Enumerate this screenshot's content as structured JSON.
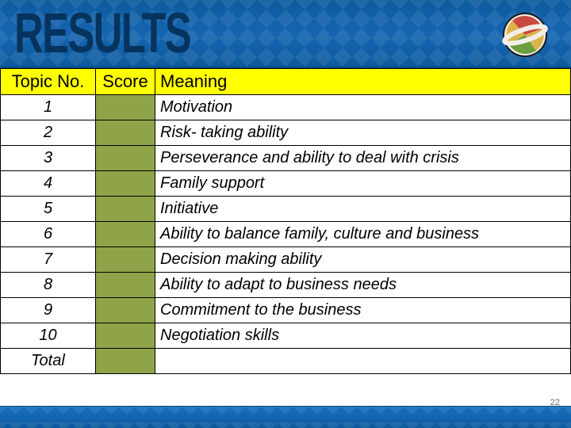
{
  "header": {
    "title": "RESULTS",
    "title_color": "#06345e",
    "bg_color_top": "#0d5a9e",
    "bg_color_mid": "#1565b0"
  },
  "table": {
    "header_bg": "#ffff00",
    "score_cell_bg": "#8fa448",
    "border_color": "#000000",
    "columns": {
      "topic": "Topic No.",
      "score": "Score",
      "meaning": "Meaning"
    },
    "col_widths": {
      "topic": 120,
      "score": 75
    },
    "header_fontsize": 22,
    "cell_fontsize": 20,
    "cell_font_style": "italic",
    "rows": [
      {
        "topic": "1",
        "meaning": "Motivation"
      },
      {
        "topic": "2",
        "meaning": "Risk- taking ability"
      },
      {
        "topic": "3",
        "meaning": "Perseverance and ability to deal with crisis"
      },
      {
        "topic": "4",
        "meaning": "Family support"
      },
      {
        "topic": "5",
        "meaning": "Initiative"
      },
      {
        "topic": "6",
        "meaning": "Ability to balance family, culture and business"
      },
      {
        "topic": "7",
        "meaning": "Decision making ability"
      },
      {
        "topic": "8",
        "meaning": "Ability to adapt to business needs"
      },
      {
        "topic": "9",
        "meaning": "Commitment to the business"
      },
      {
        "topic": "10",
        "meaning": "Negotiation skills"
      }
    ],
    "total_label": "Total"
  },
  "footer": {
    "bg_color": "#0d5a9e",
    "page_number": "22"
  },
  "logo": {
    "colors": {
      "red": "#c94a3f",
      "green": "#6b9e3e",
      "gold": "#d9b44a",
      "band": "#f2efe8"
    }
  }
}
